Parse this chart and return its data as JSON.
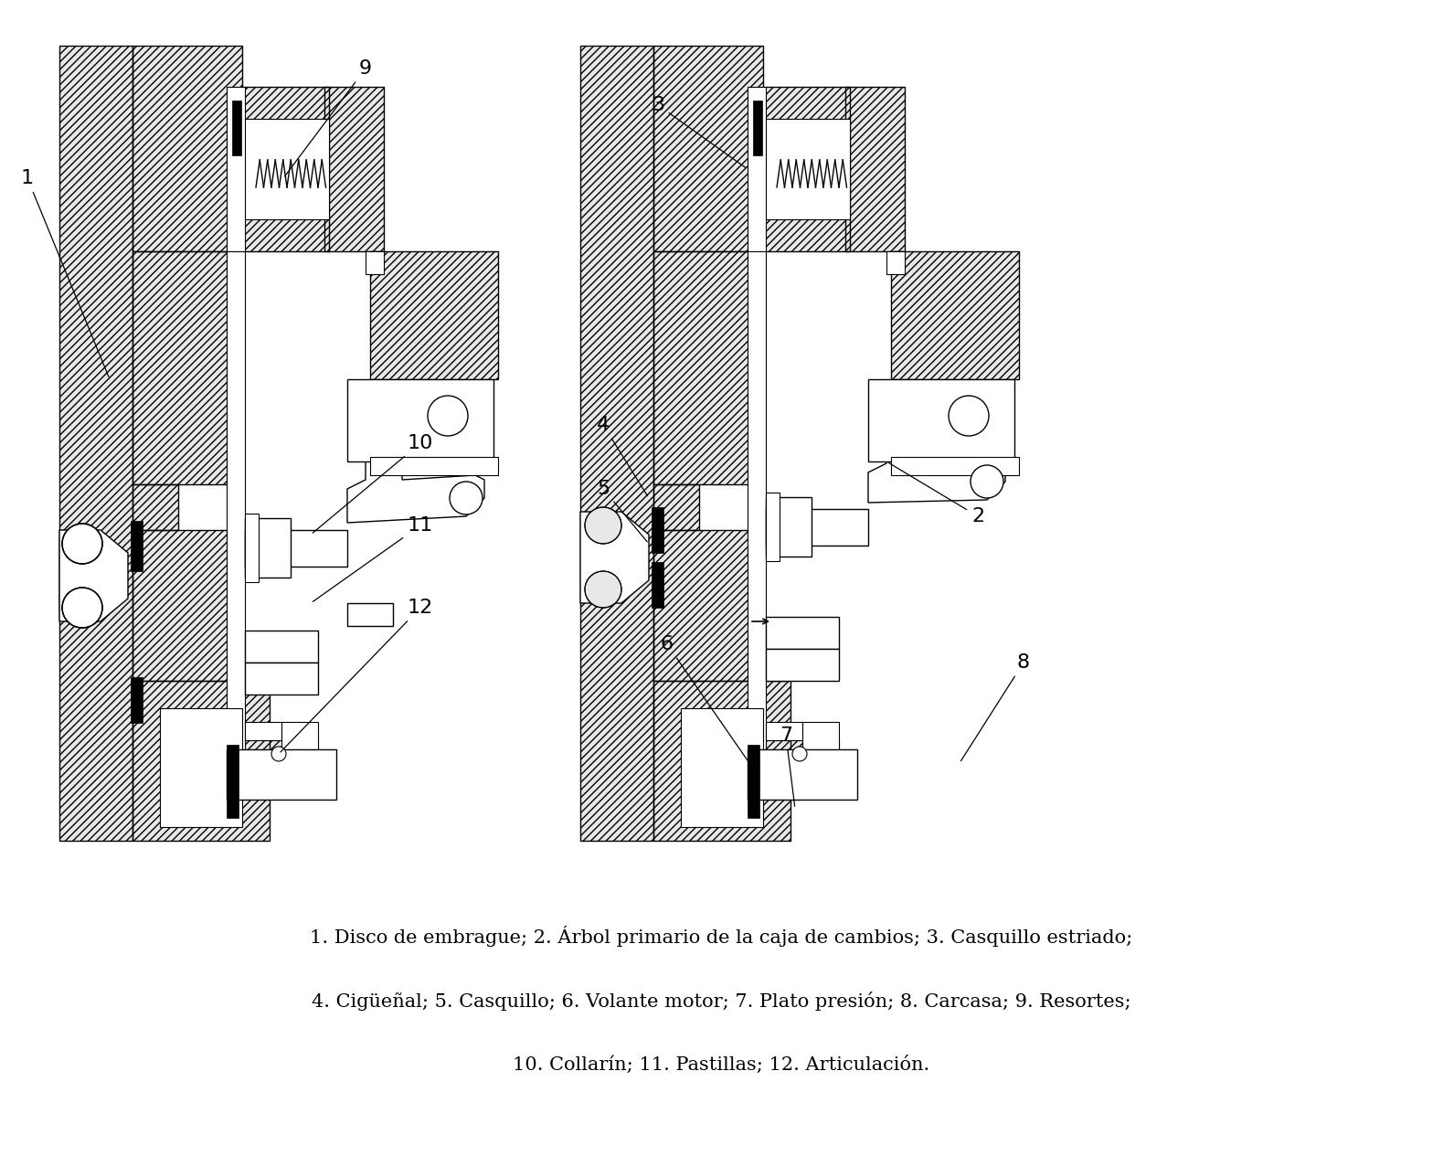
{
  "bg_color": "#ffffff",
  "caption_line1": "1. Disco de embrague; 2. Árbol primario de la caja de cambios; 3. Casquillo estriado;",
  "caption_line2": "4. Cigüеñal; 5. Casquillo; 6. Volante motor; 7. Plato presión; 8. Carcasa; 9. Resortes;",
  "caption_line3": "10. Collarín; 11. Pastillas; 12. Articulación.",
  "figsize": [
    15.79,
    12.65
  ],
  "dpi": 100
}
